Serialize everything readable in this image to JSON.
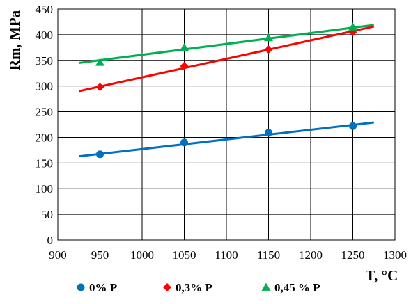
{
  "chart_data": {
    "type": "scatter",
    "xlabel": "T, °C",
    "ylabel": "Rm, MPa",
    "xlim": [
      900,
      1300
    ],
    "ylim": [
      0,
      450
    ],
    "xticks": [
      900,
      950,
      1000,
      1050,
      1100,
      1150,
      1200,
      1250,
      1300
    ],
    "yticks": [
      0,
      50,
      100,
      150,
      200,
      250,
      300,
      350,
      400,
      450
    ],
    "grid": true,
    "legend_position": "bottom",
    "series": [
      {
        "name": "0% P",
        "color": "#0070C0",
        "marker": "circle",
        "x": [
          950,
          1050,
          1150,
          1250
        ],
        "y": [
          167,
          190,
          209,
          222
        ],
        "trendline": {
          "x": [
            925,
            1275
          ],
          "y": [
            163,
            229
          ]
        }
      },
      {
        "name": "0,3% P",
        "color": "#FF0000",
        "marker": "diamond",
        "x": [
          950,
          1050,
          1150,
          1250
        ],
        "y": [
          298,
          339,
          371,
          405
        ],
        "trendline": {
          "x": [
            925,
            1275
          ],
          "y": [
            290,
            416
          ]
        }
      },
      {
        "name": "0,45 % P",
        "color": "#00B050",
        "marker": "triangle",
        "x": [
          950,
          1050,
          1150,
          1250
        ],
        "y": [
          346,
          375,
          394,
          415
        ],
        "trendline": {
          "x": [
            925,
            1275
          ],
          "y": [
            345,
            419
          ]
        }
      }
    ]
  }
}
